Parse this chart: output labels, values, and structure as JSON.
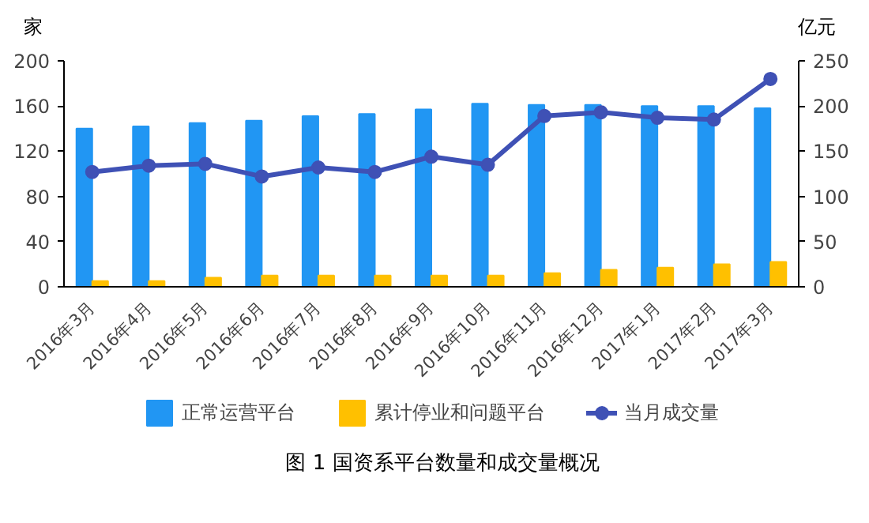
{
  "chart_data": {
    "type": "bar",
    "title": "图 1 国资系平台数量和成交量概况",
    "ylabel": "家",
    "y2label": "亿元",
    "categories": [
      "2016年3月",
      "2016年4月",
      "2016年5月",
      "2016年6月",
      "2016年7月",
      "2016年8月",
      "2016年9月",
      "2016年10月",
      "2016年11月",
      "2016年12月",
      "2017年1月",
      "2017年2月",
      "2017年3月"
    ],
    "series": [
      {
        "name": "正常运营平台",
        "color": "#2196f3",
        "values": [
          140,
          142,
          145,
          147,
          151,
          153,
          157,
          162,
          161,
          161,
          160,
          160,
          158
        ]
      },
      {
        "name": "累计停业和问题平台",
        "color": "#ffc000",
        "values": [
          5,
          5,
          8,
          10,
          10,
          10,
          10,
          10,
          12,
          15,
          17,
          20,
          22
        ]
      },
      {
        "name": "当月成交量",
        "type": "line",
        "axis": "y2",
        "color": "#3f51b5",
        "marker": "circle",
        "values": [
          127,
          134,
          136,
          122,
          132,
          127,
          144,
          135,
          189,
          193,
          187,
          185,
          230
        ]
      }
    ],
    "ylim": [
      0,
      200
    ],
    "yticks": [
      0,
      40,
      80,
      120,
      160,
      200
    ],
    "y2lim": [
      0,
      250
    ],
    "y2ticks": [
      0,
      50,
      100,
      150,
      200,
      250
    ],
    "grid": false,
    "legend": "bottom"
  }
}
